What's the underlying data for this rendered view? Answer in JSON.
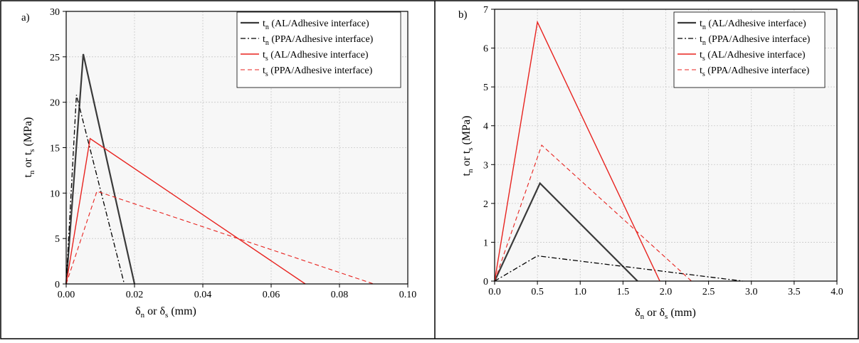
{
  "panels": [
    {
      "label": "a)",
      "chart_data": {
        "type": "line",
        "xlabel": {
          "base": "δ",
          "sub": "n",
          "mid": " or δ",
          "sub2": "s",
          "tail": " (mm)"
        },
        "ylabel": {
          "base": "t",
          "sub": "n",
          "mid": " or t",
          "sub2": "s",
          "tail": " (MPa)"
        },
        "xlim": [
          0,
          0.1
        ],
        "ylim": [
          0,
          30
        ],
        "xticks": [
          0,
          0.02,
          0.04,
          0.06,
          0.08,
          0.1
        ],
        "xtick_labels": [
          "0.00",
          "0.02",
          "0.04",
          "0.06",
          "0.08",
          "0.10"
        ],
        "yticks": [
          0,
          5,
          10,
          15,
          20,
          25,
          30
        ],
        "ytick_labels": [
          "0",
          "5",
          "10",
          "15",
          "20",
          "25",
          "30"
        ],
        "grid": true,
        "legend_position": "top-right",
        "series": [
          {
            "name_base": "t",
            "name_sub": "n",
            "name_tail": " (AL/Adhesive interface)",
            "color": "#3a3a3a",
            "dash": "solid",
            "width": 2.2,
            "points": [
              [
                0,
                0
              ],
              [
                0.005,
                25.3
              ],
              [
                0.02,
                0
              ]
            ]
          },
          {
            "name_base": "t",
            "name_sub": "n",
            "name_tail": " (PPA/Adhesive interface)",
            "color": "#000000",
            "dash": "dashdot",
            "width": 1.3,
            "points": [
              [
                0,
                0
              ],
              [
                0.003,
                20.8
              ],
              [
                0.017,
                0
              ]
            ]
          },
          {
            "name_base": "t",
            "name_sub": "s",
            "name_tail": " (AL/Adhesive interface)",
            "color": "#e8231f",
            "dash": "solid",
            "width": 1.4,
            "points": [
              [
                0,
                0
              ],
              [
                0.007,
                16
              ],
              [
                0.07,
                0
              ]
            ]
          },
          {
            "name_base": "t",
            "name_sub": "s",
            "name_tail": " (PPA/Adhesive interface)",
            "color": "#e8231f",
            "dash": "dashed",
            "width": 1.1,
            "points": [
              [
                0,
                0
              ],
              [
                0.009,
                10.2
              ],
              [
                0.09,
                0
              ]
            ]
          }
        ]
      }
    },
    {
      "label": "b)",
      "chart_data": {
        "type": "line",
        "xlabel": {
          "base": "δ",
          "sub": "n",
          "mid": " or δ",
          "sub2": "s",
          "tail": " (mm)"
        },
        "ylabel": {
          "base": "t",
          "sub": "n",
          "mid": " or t",
          "sub2": "s",
          "tail": " (MPa)"
        },
        "xlim": [
          0,
          4
        ],
        "ylim": [
          0,
          7
        ],
        "xticks": [
          0,
          0.5,
          1,
          1.5,
          2,
          2.5,
          3,
          3.5,
          4
        ],
        "xtick_labels": [
          "0.0",
          "0.5",
          "1.0",
          "1.5",
          "2.0",
          "2.5",
          "3.0",
          "3.5",
          "4.0"
        ],
        "yticks": [
          0,
          1,
          2,
          3,
          4,
          5,
          6,
          7
        ],
        "ytick_labels": [
          "0",
          "1",
          "2",
          "3",
          "4",
          "5",
          "6",
          "7"
        ],
        "grid": true,
        "legend_position": "top-right",
        "series": [
          {
            "name_base": "t",
            "name_sub": "n",
            "name_tail": " (AL/Adhesive interface)",
            "color": "#3a3a3a",
            "dash": "solid",
            "width": 2.2,
            "points": [
              [
                0,
                0
              ],
              [
                0.53,
                2.52
              ],
              [
                1.67,
                0
              ]
            ]
          },
          {
            "name_base": "t",
            "name_sub": "n",
            "name_tail": " (PPA/Adhesive interface)",
            "color": "#000000",
            "dash": "dashdot",
            "width": 1.3,
            "points": [
              [
                0,
                0
              ],
              [
                0.5,
                0.65
              ],
              [
                2.9,
                0
              ]
            ]
          },
          {
            "name_base": "t",
            "name_sub": "s",
            "name_tail": " (AL/Adhesive interface)",
            "color": "#e8231f",
            "dash": "solid",
            "width": 1.4,
            "points": [
              [
                0,
                0
              ],
              [
                0.5,
                6.67
              ],
              [
                1.93,
                0
              ]
            ]
          },
          {
            "name_base": "t",
            "name_sub": "s",
            "name_tail": " (PPA/Adhesive interface)",
            "color": "#e8231f",
            "dash": "dashed",
            "width": 1.1,
            "points": [
              [
                0,
                0
              ],
              [
                0.55,
                3.5
              ],
              [
                2.3,
                0
              ]
            ]
          }
        ]
      }
    }
  ]
}
